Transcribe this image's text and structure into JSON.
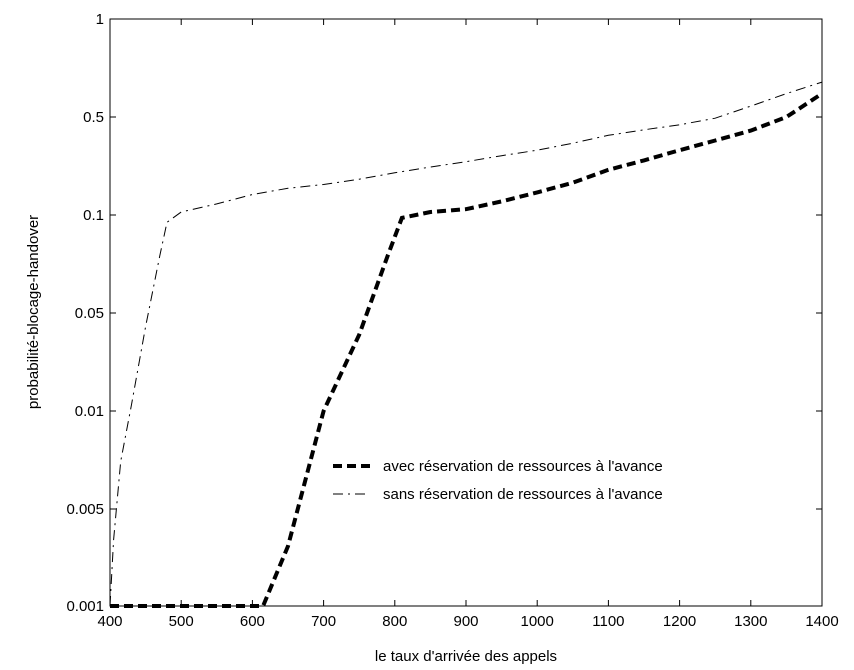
{
  "chart_data": {
    "type": "line",
    "xlabel": "le taux d'arrivée des appels",
    "ylabel": "probabilité-blocage-handover",
    "x_ticks": [
      "400",
      "500",
      "600",
      "700",
      "800",
      "900",
      "1000",
      "1100",
      "1200",
      "1300",
      "1400"
    ],
    "y_ticks": [
      "1",
      "0.5",
      "0.1",
      "0.05",
      "0.01",
      "0.005",
      "0.001"
    ],
    "y_scale": "log",
    "xlim": [
      400,
      1400
    ],
    "ylim": [
      0.001,
      1
    ],
    "grid": false,
    "legend_position": "lower-right",
    "series": [
      {
        "name": "avec réservation de ressources  à l'avance",
        "style": "thick-dashed",
        "color": "#000000",
        "x": [
          400,
          600,
          615,
          650,
          700,
          750,
          790,
          810,
          850,
          900,
          950,
          1000,
          1050,
          1100,
          1150,
          1200,
          1250,
          1300,
          1350,
          1400
        ],
        "y": [
          0.001,
          0.001,
          0.001,
          0.0027,
          0.01,
          0.035,
          0.075,
          0.098,
          0.105,
          0.11,
          0.125,
          0.145,
          0.17,
          0.21,
          0.245,
          0.29,
          0.34,
          0.4,
          0.5,
          0.59
        ]
      },
      {
        "name": "sans réservation de ressources  à l'avance",
        "style": "dash-dot",
        "color": "#000000",
        "x": [
          400,
          405,
          415,
          430,
          450,
          470,
          480,
          500,
          550,
          600,
          650,
          700,
          750,
          800,
          850,
          900,
          950,
          1000,
          1050,
          1100,
          1150,
          1200,
          1250,
          1300,
          1350,
          1400
        ],
        "y": [
          0.001,
          0.003,
          0.007,
          0.011,
          0.04,
          0.075,
          0.095,
          0.105,
          0.12,
          0.14,
          0.155,
          0.165,
          0.18,
          0.2,
          0.22,
          0.24,
          0.265,
          0.29,
          0.325,
          0.37,
          0.405,
          0.44,
          0.49,
          0.54,
          0.59,
          0.64
        ]
      }
    ]
  }
}
